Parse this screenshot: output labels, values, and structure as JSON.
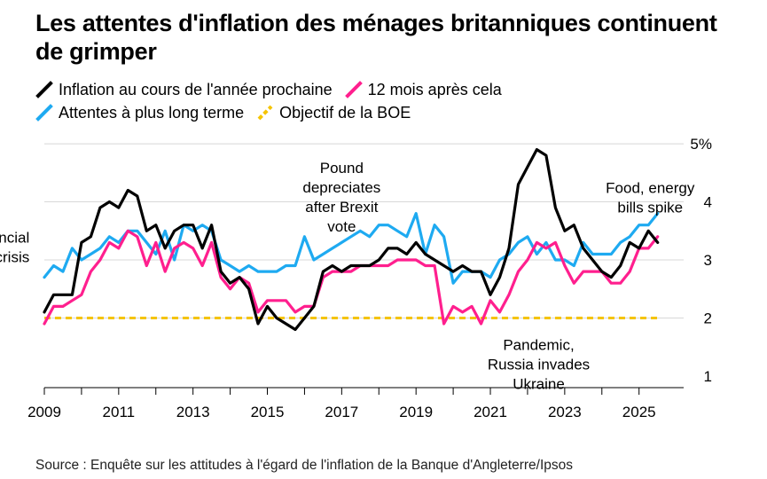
{
  "title": "Les attentes d'inflation des ménages britanniques continuent de grimper",
  "legend": [
    {
      "label": "Inflation au cours de l'année prochaine",
      "color": "#000000"
    },
    {
      "label": "12 mois après cela",
      "color": "#ff1f8e"
    },
    {
      "label": "Attentes à plus long terme",
      "color": "#1eaaf1"
    },
    {
      "label": "Objectif de la BOE",
      "color": "#f5c400",
      "dashed": true
    }
  ],
  "source": "Source : Enquête sur les attitudes à l'égard de l'inflation de la Banque d'Angleterre/Ipsos",
  "chart_data": {
    "type": "line",
    "xlim": [
      2009,
      2026.2
    ],
    "ylim": [
      0.8,
      5.2
    ],
    "x_ticks": [
      "2009",
      "2011",
      "2013",
      "2015",
      "2017",
      "2019",
      "2021",
      "2023",
      "2025"
    ],
    "y_ticks": [
      {
        "value": 1,
        "label": "1"
      },
      {
        "value": 2,
        "label": "2"
      },
      {
        "value": 3,
        "label": "3"
      },
      {
        "value": 4,
        "label": "4"
      },
      {
        "value": 5,
        "label": "5%"
      }
    ],
    "annotations": [
      {
        "lines": [
          "Financial",
          "crisis"
        ],
        "x": 2008.6,
        "y": 3.3,
        "align": "end"
      },
      {
        "lines": [
          "Pound",
          "depreciates",
          "after Brexit",
          "vote"
        ],
        "x": 2017.0,
        "y": 4.5,
        "align": "middle"
      },
      {
        "lines": [
          "Pandemic,",
          "Russia invades",
          "Ukraine"
        ],
        "x": 2022.3,
        "y": 1.45,
        "align": "middle"
      },
      {
        "lines": [
          "Food, energy",
          "bills spike"
        ],
        "x": 2025.3,
        "y": 4.15,
        "align": "middle"
      }
    ],
    "series": [
      {
        "name": "Inflation au cours de l'année prochaine",
        "color": "#000000",
        "x": [
          2009.0,
          2009.25,
          2009.5,
          2009.75,
          2010.0,
          2010.25,
          2010.5,
          2010.75,
          2011.0,
          2011.25,
          2011.5,
          2011.75,
          2012.0,
          2012.25,
          2012.5,
          2012.75,
          2013.0,
          2013.25,
          2013.5,
          2013.75,
          2014.0,
          2014.25,
          2014.5,
          2014.75,
          2015.0,
          2015.25,
          2015.5,
          2015.75,
          2016.0,
          2016.25,
          2016.5,
          2016.75,
          2017.0,
          2017.25,
          2017.5,
          2017.75,
          2018.0,
          2018.25,
          2018.5,
          2018.75,
          2019.0,
          2019.25,
          2019.5,
          2019.75,
          2020.0,
          2020.25,
          2020.5,
          2020.75,
          2021.0,
          2021.25,
          2021.5,
          2021.75,
          2022.0,
          2022.25,
          2022.5,
          2022.75,
          2023.0,
          2023.25,
          2023.5,
          2023.75,
          2024.0,
          2024.25,
          2024.5,
          2024.75,
          2025.0,
          2025.25,
          2025.5
        ],
        "values": [
          2.1,
          2.4,
          2.4,
          2.4,
          3.3,
          3.4,
          3.9,
          4.0,
          3.9,
          4.2,
          4.1,
          3.5,
          3.6,
          3.2,
          3.5,
          3.6,
          3.6,
          3.2,
          3.6,
          2.8,
          2.6,
          2.7,
          2.5,
          1.9,
          2.2,
          2.0,
          1.9,
          1.8,
          2.0,
          2.2,
          2.8,
          2.9,
          2.8,
          2.9,
          2.9,
          2.9,
          3.0,
          3.2,
          3.2,
          3.1,
          3.3,
          3.1,
          3.0,
          2.9,
          2.8,
          2.9,
          2.8,
          2.8,
          2.4,
          2.7,
          3.2,
          4.3,
          4.6,
          4.9,
          4.8,
          3.9,
          3.5,
          3.6,
          3.2,
          3.0,
          2.8,
          2.7,
          2.9,
          3.3,
          3.2,
          3.5,
          3.3
        ]
      },
      {
        "name": "12 mois après cela",
        "color": "#ff1f8e",
        "x": [
          2009.0,
          2009.25,
          2009.5,
          2009.75,
          2010.0,
          2010.25,
          2010.5,
          2010.75,
          2011.0,
          2011.25,
          2011.5,
          2011.75,
          2012.0,
          2012.25,
          2012.5,
          2012.75,
          2013.0,
          2013.25,
          2013.5,
          2013.75,
          2014.0,
          2014.25,
          2014.5,
          2014.75,
          2015.0,
          2015.25,
          2015.5,
          2015.75,
          2016.0,
          2016.25,
          2016.5,
          2016.75,
          2017.0,
          2017.25,
          2017.5,
          2017.75,
          2018.0,
          2018.25,
          2018.5,
          2018.75,
          2019.0,
          2019.25,
          2019.5,
          2019.75,
          2020.0,
          2020.25,
          2020.5,
          2020.75,
          2021.0,
          2021.25,
          2021.5,
          2021.75,
          2022.0,
          2022.25,
          2022.5,
          2022.75,
          2023.0,
          2023.25,
          2023.5,
          2023.75,
          2024.0,
          2024.25,
          2024.5,
          2024.75,
          2025.0,
          2025.25,
          2025.5
        ],
        "values": [
          1.9,
          2.2,
          2.2,
          2.3,
          2.4,
          2.8,
          3.0,
          3.3,
          3.2,
          3.5,
          3.4,
          2.9,
          3.3,
          2.8,
          3.2,
          3.3,
          3.2,
          2.9,
          3.3,
          2.7,
          2.5,
          2.7,
          2.6,
          2.1,
          2.3,
          2.3,
          2.3,
          2.1,
          2.2,
          2.2,
          2.7,
          2.8,
          2.8,
          2.8,
          2.9,
          2.9,
          2.9,
          2.9,
          3.0,
          3.0,
          3.0,
          2.9,
          2.9,
          1.9,
          2.2,
          2.1,
          2.2,
          1.9,
          2.3,
          2.1,
          2.4,
          2.8,
          3.0,
          3.3,
          3.2,
          3.3,
          2.9,
          2.6,
          2.8,
          2.8,
          2.8,
          2.6,
          2.6,
          2.8,
          3.2,
          3.2,
          3.4
        ]
      },
      {
        "name": "Attentes à plus long terme",
        "color": "#1eaaf1",
        "x": [
          2009.0,
          2009.25,
          2009.5,
          2009.75,
          2010.0,
          2010.25,
          2010.5,
          2010.75,
          2011.0,
          2011.25,
          2011.5,
          2011.75,
          2012.0,
          2012.25,
          2012.5,
          2012.75,
          2013.0,
          2013.25,
          2013.5,
          2013.75,
          2014.0,
          2014.25,
          2014.5,
          2014.75,
          2015.0,
          2015.25,
          2015.5,
          2015.75,
          2016.0,
          2016.25,
          2016.5,
          2016.75,
          2017.0,
          2017.25,
          2017.5,
          2017.75,
          2018.0,
          2018.25,
          2018.5,
          2018.75,
          2019.0,
          2019.25,
          2019.5,
          2019.75,
          2020.0,
          2020.25,
          2020.5,
          2020.75,
          2021.0,
          2021.25,
          2021.5,
          2021.75,
          2022.0,
          2022.25,
          2022.5,
          2022.75,
          2023.0,
          2023.25,
          2023.5,
          2023.75,
          2024.0,
          2024.25,
          2024.5,
          2024.75,
          2025.0,
          2025.25,
          2025.5
        ],
        "values": [
          2.7,
          2.9,
          2.8,
          3.2,
          3.0,
          3.1,
          3.2,
          3.4,
          3.3,
          3.5,
          3.5,
          3.3,
          3.1,
          3.5,
          3.0,
          3.6,
          3.5,
          3.6,
          3.5,
          3.0,
          2.9,
          2.8,
          2.9,
          2.8,
          2.8,
          2.8,
          2.9,
          2.9,
          3.4,
          3.0,
          3.1,
          3.2,
          3.3,
          3.4,
          3.5,
          3.4,
          3.6,
          3.6,
          3.5,
          3.4,
          3.8,
          3.1,
          3.6,
          3.4,
          2.6,
          2.8,
          2.8,
          2.8,
          2.7,
          3.0,
          3.1,
          3.3,
          3.4,
          3.1,
          3.3,
          3.0,
          3.0,
          2.9,
          3.3,
          3.1,
          3.1,
          3.1,
          3.3,
          3.4,
          3.6,
          3.6,
          3.8
        ]
      },
      {
        "name": "Objectif de la BOE",
        "color": "#f5c400",
        "dashed": true,
        "x": [
          2009.0,
          2025.5
        ],
        "values": [
          2.0,
          2.0
        ]
      }
    ]
  }
}
